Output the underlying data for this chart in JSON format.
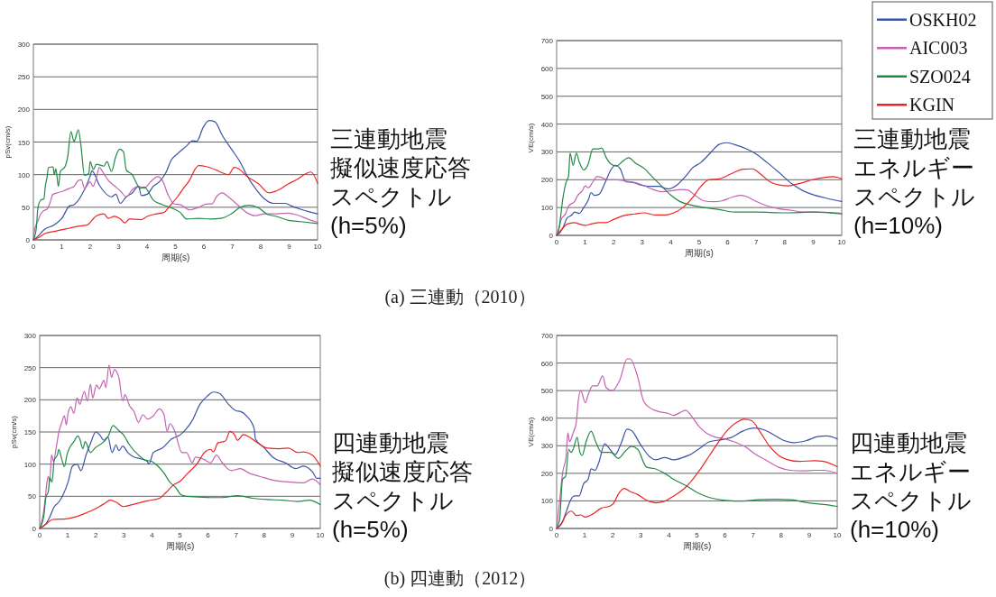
{
  "chart_data": [
    {
      "type": "line",
      "title": "三連動地震擬似速度応答スペクトル(h=5%)",
      "xlabel": "周期(s)",
      "ylabel": "pSv(cm/s)",
      "xlim": [
        0,
        10
      ],
      "xticks": [
        0,
        1,
        2,
        3,
        4,
        5,
        6,
        7,
        8,
        9,
        10
      ],
      "ylim": [
        0,
        300
      ],
      "yticks": [
        0,
        50,
        100,
        150,
        200,
        250,
        300
      ],
      "grid": "y",
      "annotations": [
        "(a) 三連動（2010）"
      ],
      "series": [
        {
          "color": "#3b53a4",
          "x": [
            0,
            0.1,
            0.42,
            0.74,
            1.0,
            1.27,
            1.43,
            1.69,
            2.0,
            2.06,
            2.32,
            2.75,
            2.9,
            3.06,
            3.27,
            3.48,
            3.7,
            3.8,
            4.0,
            4.22,
            4.43,
            4.65,
            4.86,
            5.07,
            5.39,
            5.6,
            5.75,
            5.97,
            6.18,
            6.39,
            6.65,
            6.97,
            7.28,
            7.5,
            7.81,
            8.13,
            8.45,
            8.87,
            9.08,
            9.4,
            9.71,
            10
          ],
          "values": [
            0,
            3,
            17,
            23,
            33,
            52,
            54,
            68,
            98,
            106,
            84,
            66,
            70,
            56,
            66,
            72,
            82,
            68,
            70,
            82,
            89,
            102,
            123,
            132,
            144,
            152,
            151,
            172,
            183,
            181,
            160,
            139,
            119,
            100,
            79,
            63,
            56,
            56,
            52,
            47,
            43,
            40
          ]
        },
        {
          "color": "#c462b4",
          "x": [
            0,
            0.05,
            0.16,
            0.26,
            0.37,
            0.48,
            0.58,
            0.69,
            0.84,
            1.06,
            1.27,
            1.43,
            1.58,
            1.69,
            1.8,
            2.0,
            2.1,
            2.22,
            2.32,
            2.43,
            2.64,
            2.85,
            3.06,
            3.27,
            3.48,
            3.7,
            3.9,
            4.12,
            4.38,
            4.54,
            4.75,
            4.96,
            5.17,
            5.49,
            5.81,
            6.12,
            6.28,
            6.44,
            6.65,
            6.86,
            7.18,
            7.5,
            7.81,
            8.13,
            8.55,
            8.98,
            9.29,
            9.71,
            10
          ],
          "values": [
            0,
            17,
            29,
            40,
            45,
            47,
            56,
            70,
            72,
            75,
            79,
            82,
            91,
            92,
            79,
            89,
            82,
            96,
            111,
            105,
            91,
            83,
            75,
            66,
            77,
            82,
            79,
            89,
            97,
            91,
            68,
            55,
            54,
            46,
            50,
            55,
            55,
            66,
            72,
            66,
            54,
            42,
            37,
            40,
            40,
            41,
            38,
            31,
            27
          ]
        },
        {
          "color": "#1f8a45",
          "x": [
            0,
            0.1,
            0.16,
            0.26,
            0.37,
            0.42,
            0.48,
            0.53,
            0.69,
            0.74,
            0.79,
            0.88,
            0.95,
            1.11,
            1.21,
            1.32,
            1.43,
            1.48,
            1.58,
            1.67,
            1.8,
            1.95,
            2.0,
            2.11,
            2.22,
            2.48,
            2.59,
            2.75,
            2.9,
            3.04,
            3.17,
            3.27,
            3.48,
            3.64,
            3.75,
            3.9,
            4.22,
            4.54,
            4.86,
            5.17,
            5.39,
            5.81,
            6.23,
            6.6,
            6.97,
            7.28,
            7.6,
            7.92,
            8.24,
            8.55,
            8.98,
            9.4,
            10
          ],
          "values": [
            0,
            17,
            49,
            61,
            63,
            82,
            96,
            111,
            112,
            100,
            109,
            82,
            105,
            112,
            128,
            166,
            151,
            156,
            169,
            146,
            99,
            102,
            120,
            108,
            116,
            113,
            120,
            105,
            128,
            139,
            135,
            107,
            100,
            86,
            79,
            81,
            61,
            54,
            49,
            42,
            32,
            33,
            32,
            33,
            40,
            50,
            53,
            49,
            39,
            36,
            30,
            28,
            25
          ]
        },
        {
          "color": "#ee2424",
          "x": [
            0,
            0.16,
            0.42,
            0.74,
            0.95,
            1.27,
            1.58,
            1.9,
            2.06,
            2.22,
            2.48,
            2.64,
            2.85,
            3.06,
            3.22,
            3.38,
            3.8,
            4.0,
            4.33,
            4.59,
            4.8,
            5.07,
            5.28,
            5.49,
            5.7,
            5.81,
            6.12,
            6.44,
            6.7,
            6.86,
            7.07,
            7.23,
            7.5,
            7.92,
            8.29,
            8.55,
            8.98,
            9.29,
            9.61,
            9.77,
            10
          ],
          "values": [
            0,
            3,
            10,
            13,
            15,
            18,
            21,
            23,
            30,
            37,
            40,
            33,
            36,
            32,
            26,
            32,
            31,
            36,
            40,
            42,
            52,
            66,
            79,
            91,
            109,
            114,
            112,
            107,
            102,
            100,
            111,
            109,
            98,
            86,
            72,
            75,
            86,
            93,
            102,
            104,
            87
          ]
        }
      ]
    },
    {
      "type": "line",
      "title": "三連動地震エネルギースペクトル(h=10%)",
      "xlabel": "周期(s)",
      "ylabel": "VE(cm/s)",
      "xlim": [
        0,
        10
      ],
      "xticks": [
        0,
        1,
        2,
        3,
        4,
        5,
        6,
        7,
        8,
        9,
        10
      ],
      "ylim": [
        0,
        700
      ],
      "yticks": [
        0,
        100,
        200,
        300,
        400,
        500,
        600,
        700
      ],
      "grid": "y",
      "legend": "top right",
      "series": [
        {
          "name": "OSKH02",
          "color": "#3b53a4",
          "x": [
            0,
            0.05,
            0.21,
            0.37,
            0.53,
            0.63,
            0.79,
            0.95,
            1.11,
            1.21,
            1.32,
            1.48,
            1.69,
            1.9,
            2.06,
            2.22,
            2.43,
            2.64,
            2.95,
            3.27,
            3.59,
            3.9,
            4.22,
            4.54,
            4.75,
            5.06,
            5.38,
            5.7,
            5.96,
            6.22,
            6.65,
            6.96,
            7.38,
            7.81,
            8.23,
            8.65,
            9.07,
            9.49,
            10
          ],
          "values": [
            0,
            3,
            25,
            63,
            73,
            84,
            79,
            100,
            127,
            154,
            144,
            147,
            187,
            235,
            252,
            241,
            192,
            191,
            181,
            176,
            176,
            167,
            181,
            214,
            241,
            262,
            295,
            327,
            333,
            327,
            311,
            295,
            262,
            225,
            187,
            160,
            144,
            133,
            122
          ]
        },
        {
          "name": "AIC003",
          "color": "#c462b4",
          "x": [
            0,
            0.05,
            0.16,
            0.32,
            0.42,
            0.63,
            0.74,
            0.9,
            1.0,
            1.11,
            1.27,
            1.42,
            1.58,
            1.79,
            2.11,
            2.43,
            2.74,
            3.06,
            3.38,
            3.69,
            4.01,
            4.38,
            4.59,
            4.85,
            5.17,
            5.49,
            5.8,
            6.12,
            6.43,
            6.65,
            6.96,
            7.38,
            7.81,
            8.23,
            8.65,
            9.07,
            9.6,
            10
          ],
          "values": [
            0,
            9,
            57,
            79,
            106,
            122,
            144,
            160,
            178,
            171,
            192,
            212,
            208,
            200,
            200,
            195,
            190,
            179,
            165,
            157,
            160,
            165,
            163,
            144,
            124,
            121,
            124,
            136,
            144,
            140,
            124,
            106,
            95,
            90,
            84,
            84,
            82,
            79
          ]
        },
        {
          "name": "SZO024",
          "color": "#1f8a45",
          "x": [
            0,
            0.1,
            0.21,
            0.32,
            0.42,
            0.47,
            0.58,
            0.69,
            0.79,
            0.95,
            1.11,
            1.27,
            1.48,
            1.58,
            1.74,
            1.9,
            2.11,
            2.27,
            2.53,
            2.74,
            3.06,
            3.38,
            3.69,
            4.01,
            4.32,
            4.75,
            5.17,
            5.7,
            6.22,
            6.96,
            8.02,
            9.07,
            10
          ],
          "values": [
            0,
            36,
            127,
            187,
            214,
            295,
            252,
            295,
            265,
            235,
            257,
            311,
            311,
            314,
            279,
            257,
            249,
            262,
            279,
            262,
            241,
            208,
            176,
            144,
            122,
            108,
            100,
            93,
            84,
            84,
            81,
            84,
            77
          ]
        },
        {
          "name": "KGIN",
          "color": "#ee2424",
          "x": [
            0,
            0.21,
            0.37,
            0.63,
            0.79,
            1.0,
            1.21,
            1.48,
            1.74,
            2.0,
            2.32,
            2.74,
            3.06,
            3.48,
            3.8,
            4.11,
            4.43,
            4.75,
            5.06,
            5.33,
            5.7,
            6.12,
            6.54,
            6.86,
            7.17,
            7.49,
            7.81,
            8.12,
            8.54,
            8.97,
            9.39,
            9.7,
            10
          ],
          "values": [
            0,
            25,
            41,
            46,
            41,
            36,
            41,
            46,
            46,
            57,
            70,
            77,
            81,
            73,
            73,
            81,
            100,
            133,
            176,
            200,
            203,
            221,
            238,
            239,
            219,
            192,
            181,
            178,
            187,
            200,
            208,
            211,
            203
          ]
        }
      ]
    },
    {
      "type": "line",
      "title": "四連動地震擬似速度応答スペクトル(h=5%)",
      "xlabel": "周期(s)",
      "ylabel": "pSv(cm/s)",
      "xlim": [
        0,
        10
      ],
      "xticks": [
        0,
        1,
        2,
        3,
        4,
        5,
        6,
        7,
        8,
        9,
        10
      ],
      "ylim": [
        0,
        300
      ],
      "yticks": [
        0,
        50,
        100,
        150,
        200,
        250,
        300
      ],
      "grid": "y",
      "annotations": [
        "(b) 四連動（2012）"
      ],
      "series": [
        {
          "color": "#3b53a4",
          "x": [
            0,
            0.2,
            0.36,
            0.52,
            0.68,
            0.84,
            1.01,
            1.17,
            1.33,
            1.47,
            1.65,
            1.81,
            2.0,
            2.13,
            2.29,
            2.43,
            2.58,
            2.72,
            2.82,
            2.96,
            3.14,
            3.36,
            3.63,
            3.84,
            3.89,
            4.05,
            4.37,
            4.7,
            5.02,
            5.23,
            5.44,
            5.71,
            5.98,
            6.19,
            6.41,
            6.73,
            7.0,
            7.15,
            7.37,
            7.64,
            7.69,
            8.01,
            8.33,
            8.76,
            9.13,
            9.4,
            9.72,
            9.88,
            10
          ],
          "values": [
            0,
            6,
            18,
            34,
            41,
            53,
            72,
            97,
            100,
            90,
            114,
            132,
            150,
            146,
            137,
            142,
            118,
            130,
            121,
            128,
            118,
            111,
            108,
            104,
            100,
            118,
            125,
            139,
            146,
            155,
            168,
            193,
            206,
            212,
            210,
            193,
            183,
            182,
            175,
            156,
            139,
            125,
            110,
            102,
            93,
            97,
            88,
            78,
            78
          ]
        },
        {
          "color": "#c462b4",
          "x": [
            0,
            0.15,
            0.2,
            0.26,
            0.31,
            0.36,
            0.42,
            0.5,
            0.58,
            0.68,
            0.79,
            0.88,
            0.95,
            1.01,
            1.11,
            1.22,
            1.33,
            1.43,
            1.59,
            1.7,
            1.81,
            1.89,
            2.02,
            2.12,
            2.29,
            2.36,
            2.47,
            2.56,
            2.66,
            2.82,
            2.96,
            3.04,
            3.2,
            3.36,
            3.52,
            3.68,
            3.84,
            4.05,
            4.27,
            4.43,
            4.54,
            4.64,
            4.8,
            5.07,
            5.23,
            5.44,
            5.55,
            5.87,
            6.09,
            6.3,
            6.51,
            6.83,
            7.15,
            7.47,
            8.0,
            8.44,
            8.97,
            9.4,
            9.72,
            10
          ],
          "values": [
            0,
            29,
            48,
            72,
            81,
            72,
            114,
            104,
            123,
            149,
            165,
            175,
            161,
            179,
            189,
            179,
            203,
            193,
            213,
            198,
            224,
            203,
            223,
            217,
            230,
            219,
            254,
            235,
            247,
            235,
            198,
            208,
            191,
            182,
            165,
            177,
            170,
            175,
            186,
            177,
            151,
            163,
            153,
            118,
            118,
            102,
            111,
            107,
            102,
            114,
            102,
            90,
            93,
            86,
            79,
            74,
            72,
            71,
            77,
            68
          ]
        },
        {
          "color": "#1f8a45",
          "x": [
            0,
            0.15,
            0.22,
            0.31,
            0.36,
            0.44,
            0.52,
            0.63,
            0.68,
            0.79,
            0.88,
            0.97,
            1.06,
            1.22,
            1.36,
            1.43,
            1.54,
            1.62,
            1.81,
            1.97,
            2.29,
            2.45,
            2.61,
            2.82,
            2.98,
            3.2,
            3.52,
            3.73,
            4.0,
            4.21,
            4.43,
            4.64,
            4.86,
            5.02,
            5.23,
            5.66,
            6.09,
            6.51,
            7.05,
            7.58,
            8.12,
            8.65,
            9.19,
            9.61,
            10
          ],
          "values": [
            0,
            20,
            48,
            58,
            79,
            72,
            107,
            114,
            123,
            107,
            96,
            114,
            125,
            135,
            144,
            139,
            124,
            135,
            118,
            125,
            135,
            144,
            160,
            152,
            146,
            130,
            114,
            107,
            104,
            97,
            86,
            72,
            63,
            53,
            50,
            49,
            48,
            48,
            51,
            47,
            45,
            44,
            42,
            44,
            37
          ]
        },
        {
          "color": "#ee2424",
          "x": [
            0,
            0.2,
            0.47,
            0.95,
            1.27,
            1.59,
            1.81,
            2.13,
            2.35,
            2.5,
            2.72,
            2.98,
            3.3,
            3.84,
            4.27,
            4.48,
            4.75,
            5.02,
            5.28,
            5.6,
            5.87,
            6.09,
            6.19,
            6.35,
            6.62,
            6.78,
            6.94,
            7.05,
            7.26,
            7.48,
            7.8,
            8.12,
            8.55,
            8.87,
            9.19,
            9.4,
            9.72,
            10
          ],
          "values": [
            0,
            6,
            14,
            15,
            18,
            23,
            27,
            34,
            40,
            44,
            41,
            34,
            37,
            43,
            47,
            55,
            67,
            74,
            86,
            100,
            118,
            123,
            119,
            133,
            136,
            151,
            146,
            137,
            146,
            142,
            132,
            125,
            124,
            125,
            118,
            119,
            114,
            97
          ]
        }
      ]
    },
    {
      "type": "line",
      "title": "四連動地震エネルギースペクトル(h=10%)",
      "xlabel": "周期(s)",
      "ylabel": "VE(cm/s)",
      "xlim": [
        0,
        10
      ],
      "xticks": [
        0,
        1,
        2,
        3,
        4,
        5,
        6,
        7,
        8,
        9,
        10
      ],
      "ylim": [
        0,
        700
      ],
      "yticks": [
        0,
        100,
        200,
        300,
        400,
        500,
        600,
        700
      ],
      "grid": "y",
      "series": [
        {
          "color": "#3b53a4",
          "x": [
            0,
            0.21,
            0.37,
            0.48,
            0.64,
            0.8,
            0.96,
            1.12,
            1.23,
            1.37,
            1.5,
            1.71,
            1.9,
            2.09,
            2.3,
            2.51,
            2.67,
            2.99,
            3.32,
            3.53,
            3.85,
            4.17,
            4.49,
            4.81,
            5.13,
            5.45,
            5.88,
            6.2,
            6.63,
            7.06,
            7.38,
            7.7,
            8.13,
            8.45,
            8.88,
            9.3,
            9.63,
            10
          ],
          "values": [
            0,
            25,
            69,
            99,
            118,
            118,
            162,
            178,
            216,
            211,
            238,
            307,
            287,
            268,
            309,
            360,
            355,
            304,
            260,
            249,
            257,
            249,
            257,
            271,
            293,
            315,
            322,
            329,
            353,
            364,
            358,
            342,
            318,
            311,
            318,
            333,
            336,
            325
          ]
        },
        {
          "color": "#c462b4",
          "x": [
            0,
            0.11,
            0.21,
            0.34,
            0.4,
            0.46,
            0.59,
            0.7,
            0.77,
            0.86,
            1.02,
            1.12,
            1.28,
            1.44,
            1.64,
            1.76,
            1.98,
            2.25,
            2.51,
            2.62,
            2.89,
            3.1,
            3.32,
            3.64,
            3.96,
            4.17,
            4.39,
            4.6,
            4.81,
            5.08,
            5.35,
            5.67,
            5.99,
            6.31,
            6.74,
            7.06,
            7.49,
            7.91,
            8.34,
            8.77,
            9.2,
            9.52,
            10
          ],
          "values": [
            0,
            102,
            200,
            265,
            347,
            315,
            347,
            385,
            462,
            500,
            456,
            484,
            517,
            517,
            553,
            511,
            500,
            538,
            615,
            615,
            549,
            462,
            438,
            424,
            418,
            410,
            420,
            429,
            407,
            369,
            345,
            331,
            325,
            315,
            295,
            271,
            246,
            222,
            211,
            209,
            211,
            211,
            200
          ]
        },
        {
          "color": "#1f8a45",
          "x": [
            0,
            0.11,
            0.21,
            0.32,
            0.43,
            0.51,
            0.59,
            0.73,
            0.83,
            0.91,
            1.05,
            1.23,
            1.39,
            1.6,
            1.93,
            2.19,
            2.46,
            2.67,
            2.89,
            3.21,
            3.53,
            3.85,
            4.17,
            4.6,
            5.03,
            5.45,
            5.99,
            6.63,
            7.17,
            7.81,
            8.34,
            8.98,
            9.52,
            10
          ],
          "values": [
            0,
            36,
            178,
            189,
            287,
            276,
            287,
            331,
            276,
            265,
            315,
            353,
            315,
            276,
            276,
            254,
            282,
            298,
            287,
            222,
            216,
            200,
            178,
            156,
            129,
            112,
            102,
            99,
            104,
            106,
            104,
            93,
            87,
            80
          ]
        },
        {
          "color": "#ee2424",
          "x": [
            0,
            0.16,
            0.32,
            0.53,
            0.7,
            0.86,
            1.02,
            1.28,
            1.6,
            1.87,
            2.03,
            2.19,
            2.41,
            2.62,
            2.89,
            3.21,
            3.53,
            3.85,
            4.17,
            4.49,
            4.81,
            5.13,
            5.45,
            5.78,
            6.1,
            6.42,
            6.68,
            6.95,
            7.27,
            7.59,
            7.91,
            8.24,
            8.66,
            9.2,
            9.52,
            10
          ],
          "values": [
            0,
            14,
            47,
            63,
            47,
            49,
            41,
            52,
            74,
            80,
            91,
            123,
            145,
            134,
            123,
            102,
            93,
            99,
            118,
            140,
            173,
            216,
            265,
            315,
            358,
            385,
            396,
            391,
            347,
            298,
            265,
            249,
            243,
            246,
            243,
            224
          ]
        }
      ]
    }
  ]
}
